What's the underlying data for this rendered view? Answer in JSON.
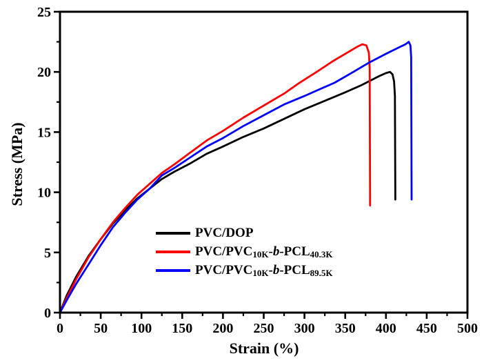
{
  "figure": {
    "background": "#ffffff",
    "frame_color": "#000000"
  },
  "chart_data": {
    "type": "line",
    "title": "",
    "xlabel": "Strain (%)",
    "ylabel": "Stress (MPa)",
    "xlim": [
      0,
      500
    ],
    "ylim": [
      0,
      25
    ],
    "grid": false,
    "x_major_ticks": [
      0,
      50,
      100,
      150,
      200,
      250,
      300,
      350,
      400,
      450,
      500
    ],
    "x_minor_interval": 25,
    "y_major_ticks": [
      0,
      5,
      10,
      15,
      20,
      25
    ],
    "y_minor_interval": 2.5,
    "legend_position": "inside-lower-middle",
    "series": [
      {
        "id": "pvc-dop",
        "name": "PVC/DOP",
        "color": "#000000",
        "label_parts": [
          {
            "text": "PVC/DOP"
          }
        ],
        "peak": {
          "strain": 405,
          "stress": 20.0
        },
        "fracture": {
          "strain": 411,
          "stress_drop_to": 9.4
        },
        "points": [
          [
            0,
            0
          ],
          [
            8,
            1.4
          ],
          [
            20,
            3.0
          ],
          [
            35,
            4.7
          ],
          [
            50,
            6.1
          ],
          [
            65,
            7.4
          ],
          [
            80,
            8.5
          ],
          [
            95,
            9.5
          ],
          [
            110,
            10.3
          ],
          [
            125,
            11.1
          ],
          [
            140,
            11.7
          ],
          [
            160,
            12.4
          ],
          [
            180,
            13.2
          ],
          [
            200,
            13.8
          ],
          [
            225,
            14.6
          ],
          [
            250,
            15.3
          ],
          [
            275,
            16.1
          ],
          [
            300,
            16.9
          ],
          [
            325,
            17.6
          ],
          [
            350,
            18.3
          ],
          [
            370,
            18.9
          ],
          [
            390,
            19.6
          ],
          [
            400,
            19.9
          ],
          [
            405,
            20.0
          ],
          [
            408,
            19.8
          ],
          [
            410,
            19.2
          ],
          [
            411,
            18.0
          ],
          [
            411.5,
            9.4
          ]
        ]
      },
      {
        "id": "pvc-pvc10k-b-pcl40k",
        "name": "PVC/PVC10K-b-PCL40.3K",
        "color": "#ff0000",
        "label_parts": [
          {
            "text": "PVC/PVC"
          },
          {
            "text": "10K",
            "sub": true
          },
          {
            "text": "-"
          },
          {
            "text": "b",
            "italic": true
          },
          {
            "text": "-PCL"
          },
          {
            "text": "40.3K",
            "sub": true
          }
        ],
        "peak": {
          "strain": 371,
          "stress": 22.3
        },
        "fracture": {
          "strain": 380,
          "stress_drop_to": 8.9
        },
        "points": [
          [
            0,
            0
          ],
          [
            8,
            1.2
          ],
          [
            20,
            2.8
          ],
          [
            35,
            4.6
          ],
          [
            50,
            6.1
          ],
          [
            65,
            7.5
          ],
          [
            80,
            8.7
          ],
          [
            95,
            9.8
          ],
          [
            110,
            10.7
          ],
          [
            125,
            11.6
          ],
          [
            140,
            12.3
          ],
          [
            160,
            13.3
          ],
          [
            180,
            14.3
          ],
          [
            200,
            15.1
          ],
          [
            225,
            16.2
          ],
          [
            250,
            17.2
          ],
          [
            275,
            18.2
          ],
          [
            294,
            19.1
          ],
          [
            315,
            20.0
          ],
          [
            335,
            20.9
          ],
          [
            355,
            21.7
          ],
          [
            365,
            22.1
          ],
          [
            371,
            22.3
          ],
          [
            376,
            22.2
          ],
          [
            379,
            21.6
          ],
          [
            380,
            20.3
          ],
          [
            380.5,
            8.9
          ]
        ]
      },
      {
        "id": "pvc-pvc10k-b-pcl89k",
        "name": "PVC/PVC10K-b-PCL89.5K",
        "color": "#0000ff",
        "label_parts": [
          {
            "text": "PVC/PVC"
          },
          {
            "text": "10K",
            "sub": true
          },
          {
            "text": "-"
          },
          {
            "text": "b",
            "italic": true
          },
          {
            "text": "-PCL"
          },
          {
            "text": "89.5K",
            "sub": true
          }
        ],
        "peak": {
          "strain": 428,
          "stress": 22.5
        },
        "fracture": {
          "strain": 431,
          "stress_drop_to": 9.4
        },
        "points": [
          [
            0,
            0
          ],
          [
            8,
            1.0
          ],
          [
            20,
            2.4
          ],
          [
            35,
            4.0
          ],
          [
            50,
            5.6
          ],
          [
            65,
            7.1
          ],
          [
            80,
            8.3
          ],
          [
            95,
            9.4
          ],
          [
            110,
            10.3
          ],
          [
            125,
            11.4
          ],
          [
            140,
            12.0
          ],
          [
            160,
            12.9
          ],
          [
            180,
            13.8
          ],
          [
            200,
            14.5
          ],
          [
            225,
            15.5
          ],
          [
            250,
            16.4
          ],
          [
            275,
            17.3
          ],
          [
            300,
            18.0
          ],
          [
            320,
            18.6
          ],
          [
            337,
            19.1
          ],
          [
            360,
            20.0
          ],
          [
            380,
            20.8
          ],
          [
            400,
            21.5
          ],
          [
            415,
            22.0
          ],
          [
            424,
            22.3
          ],
          [
            428,
            22.5
          ],
          [
            430,
            22.2
          ],
          [
            431,
            21.2
          ],
          [
            431.5,
            9.4
          ]
        ]
      }
    ]
  }
}
